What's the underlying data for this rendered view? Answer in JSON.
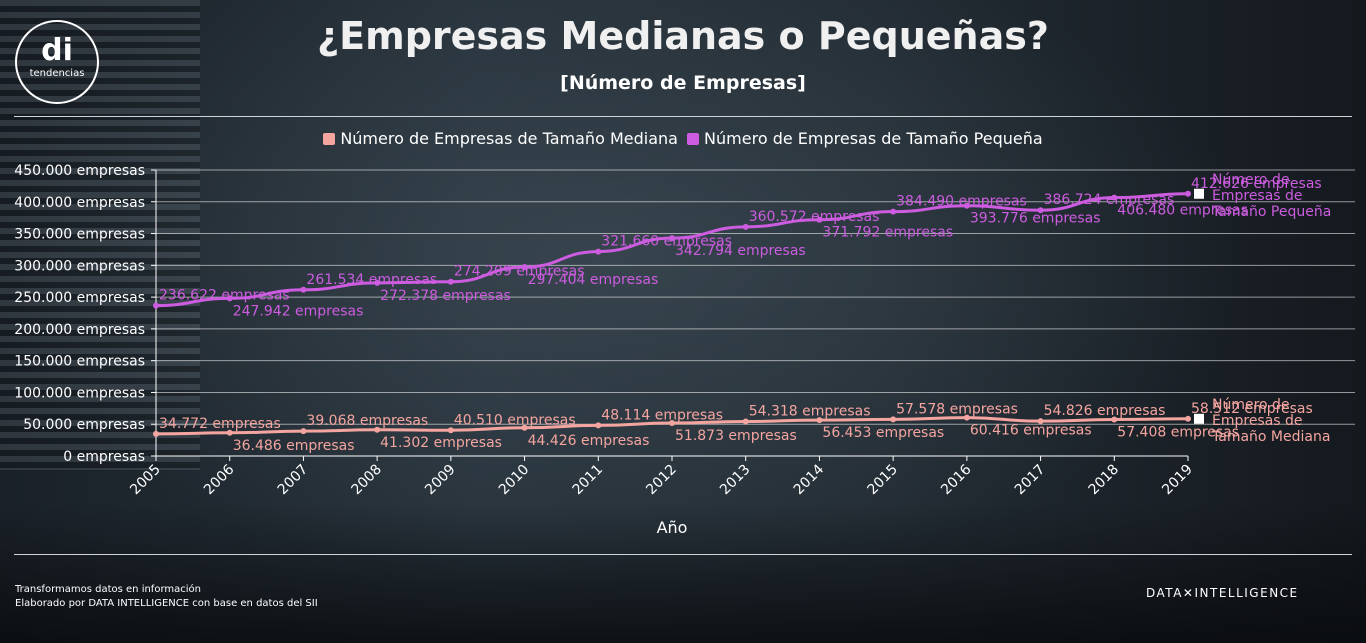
{
  "header": {
    "logo_mark": "di",
    "logo_text": "tendencias",
    "title": "¿Empresas Medianas o Pequeñas?",
    "subtitle": "[Número de Empresas]"
  },
  "legend": [
    {
      "label": "Número de Empresas de Tamaño Mediana",
      "color": "#f4a5a0"
    },
    {
      "label": "Número de Empresas de Tamaño Pequeña",
      "color": "#cd5ce0"
    }
  ],
  "chart_data": {
    "type": "line",
    "xlabel": "Año",
    "ylabel": "",
    "x": [
      2005,
      2006,
      2007,
      2008,
      2009,
      2010,
      2011,
      2012,
      2013,
      2014,
      2015,
      2016,
      2017,
      2018,
      2019
    ],
    "ylim": [
      0,
      450000
    ],
    "yticks": [
      "0 empresas",
      "50.000 empresas",
      "100.000 empresas",
      "150.000 empresas",
      "200.000 empresas",
      "250.000 empresas",
      "300.000 empresas",
      "350.000 empresas",
      "400.000 empresas",
      "450.000 empresas"
    ],
    "grid": true,
    "legend_position": "top",
    "series": [
      {
        "name": "Número de Empresas de Tamaño Pequeña",
        "end_label": [
          "Número de",
          "Empresas de",
          "Tamaño Pequeña"
        ],
        "color": "#cd5ce0",
        "values": [
          236622,
          247942,
          261534,
          272378,
          274209,
          297404,
          321660,
          342794,
          360572,
          371792,
          384490,
          393776,
          386724,
          406480,
          412626
        ],
        "labels": [
          "236.622 empresas",
          "247.942 empresas",
          "261.534 empresas",
          "272.378 empresas",
          "274.209 empresas",
          "297.404 empresas",
          "321.660 empresas",
          "342.794 empresas",
          "360.572 empresas",
          "371.792 empresas",
          "384.490 empresas",
          "393.776 empresas",
          "386.724 empresas",
          "406.480 empresas",
          "412.626 empresas"
        ]
      },
      {
        "name": "Número de Empresas de Tamaño Mediana",
        "end_label": [
          "Número de",
          "Empresas de",
          "Tamaño Mediana"
        ],
        "color": "#f4a5a0",
        "values": [
          34772,
          36486,
          39068,
          41302,
          40510,
          44426,
          48114,
          51873,
          54318,
          56453,
          57578,
          60416,
          54826,
          57408,
          58512
        ],
        "labels": [
          "34.772 empresas",
          "36.486 empresas",
          "39.068 empresas",
          "41.302 empresas",
          "40.510 empresas",
          "44.426 empresas",
          "48.114 empresas",
          "51.873 empresas",
          "54.318 empresas",
          "56.453 empresas",
          "57.578 empresas",
          "60.416 empresas",
          "54.826 empresas",
          "57.408 empresas",
          "58.512 empresas"
        ]
      }
    ]
  },
  "footer": {
    "line1": "Transformamos datos en información",
    "line2": "Elaborado por DATA INTELLIGENCE con base en datos del SII",
    "brand": "DATA✕INTELLIGENCE"
  }
}
